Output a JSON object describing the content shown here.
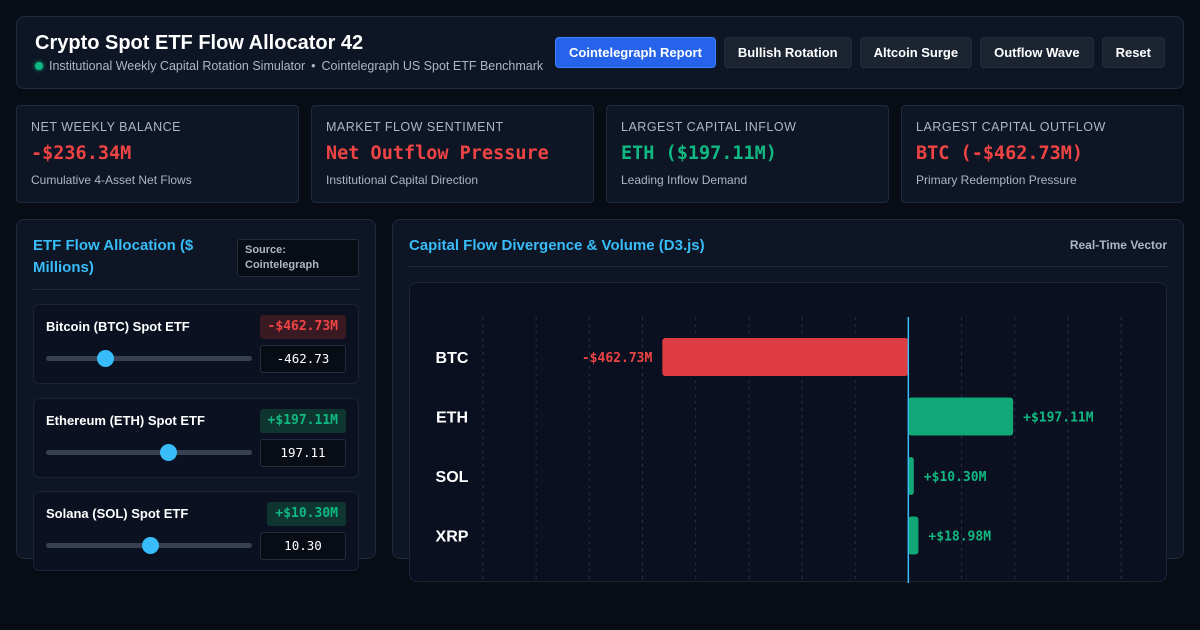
{
  "header": {
    "title": "Crypto Spot ETF Flow Allocator 42",
    "subtitle_left": "Institutional Weekly Capital Rotation Simulator",
    "separator": "•",
    "subtitle_right": "Cointelegraph US Spot ETF Benchmark",
    "buttons": [
      "Cointelegraph Report",
      "Bullish Rotation",
      "Altcoin Surge",
      "Outflow Wave",
      "Reset"
    ],
    "active_button": "Cointelegraph Report"
  },
  "stats": [
    {
      "label": "NET WEEKLY BALANCE",
      "value": "-$236.34M",
      "sub": "Cumulative 4-Asset Net Flows",
      "tone": "neg"
    },
    {
      "label": "MARKET FLOW SENTIMENT",
      "value": "Net Outflow Pressure",
      "sub": "Institutional Capital Direction",
      "tone": "neg"
    },
    {
      "label": "LARGEST CAPITAL INFLOW",
      "value": "ETH ($197.11M)",
      "sub": "Leading Inflow Demand",
      "tone": "pos"
    },
    {
      "label": "LARGEST CAPITAL OUTFLOW",
      "value": "BTC (-$462.73M)",
      "sub": "Primary Redemption Pressure",
      "tone": "neg"
    }
  ],
  "allocation": {
    "title": "ETF Flow Allocation ($ Millions)",
    "source_label": "Source:",
    "source_name": "Cointelegraph",
    "assets": [
      {
        "name": "Bitcoin (BTC) Spot ETF",
        "badge": "-$462.73M",
        "input": "-462.73",
        "tone": "neg",
        "slider_fraction": 0.285
      },
      {
        "name": "Ethereum (ETH) Spot ETF",
        "badge": "+$197.11M",
        "input": "197.11",
        "tone": "pos",
        "slider_fraction": 0.59
      },
      {
        "name": "Solana (SOL) Spot ETF",
        "badge": "+$10.30M",
        "input": "10.30",
        "tone": "pos",
        "slider_fraction": 0.505
      }
    ]
  },
  "divergence": {
    "title": "Capital Flow Divergence & Volume (D3.js)",
    "tag": "Real-Time Vector"
  },
  "colors": {
    "accent": "#38bdf8",
    "primary_button": "#2563eb",
    "negative": "#ef4444",
    "positive": "#10b981",
    "bar_negative": "#dc3c42",
    "bar_positive": "#10a876",
    "zero_line": "#38bdf8"
  },
  "chart_data": {
    "type": "bar",
    "orientation": "horizontal",
    "categories": [
      "BTC",
      "ETH",
      "SOL",
      "XRP"
    ],
    "values": [
      -462.73,
      197.11,
      10.3,
      18.98
    ],
    "data_labels": [
      "-$462.73M",
      "+$197.11M",
      "+$10.30M",
      "+$18.98M"
    ],
    "xlim": [
      -800,
      400
    ],
    "grid": true
  }
}
